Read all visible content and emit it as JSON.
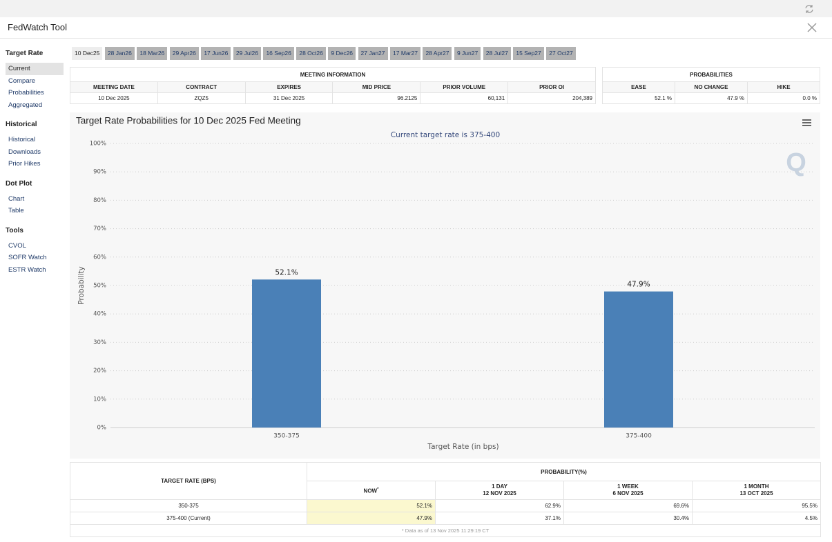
{
  "header": {
    "title": "FedWatch Tool"
  },
  "sidebar": [
    {
      "heading": "Target Rate",
      "items": [
        "Current",
        "Compare",
        "Probabilities",
        "Aggregated"
      ]
    },
    {
      "heading": "Historical",
      "items": [
        "Historical",
        "Downloads",
        "Prior Hikes"
      ]
    },
    {
      "heading": "Dot Plot",
      "items": [
        "Chart",
        "Table"
      ]
    },
    {
      "heading": "Tools",
      "items": [
        "CVOL",
        "SOFR Watch",
        "ESTR Watch"
      ]
    }
  ],
  "meeting_tabs": [
    "10 Dec25",
    "28 Jan26",
    "18 Mar26",
    "29 Apr26",
    "17 Jun26",
    "29 Jul26",
    "16 Sep26",
    "28 Oct26",
    "9 Dec26",
    "27 Jan27",
    "17 Mar27",
    "28 Apr27",
    "9 Jun27",
    "28 Jul27",
    "15 Sep27",
    "27 Oct27"
  ],
  "meeting_info": {
    "title": "MEETING INFORMATION",
    "columns": [
      "MEETING DATE",
      "CONTRACT",
      "EXPIRES",
      "MID PRICE",
      "PRIOR VOLUME",
      "PRIOR OI"
    ],
    "row": [
      "10 Dec 2025",
      "ZQZ5",
      "31 Dec 2025",
      "96.2125",
      "60,131",
      "204,389"
    ]
  },
  "probabilities": {
    "title": "PROBABILITIES",
    "columns": [
      "EASE",
      "NO CHANGE",
      "HIKE"
    ],
    "row": [
      "52.1 %",
      "47.9 %",
      "0.0 %"
    ]
  },
  "chart_data": {
    "type": "bar",
    "title": "Target Rate Probabilities for 10 Dec 2025 Fed Meeting",
    "subtitle": "Current target rate is 375-400",
    "x_label": "Target Rate (in bps)",
    "y_label": "Probability",
    "categories": [
      "350-375",
      "375-400"
    ],
    "values": [
      52.1,
      47.9
    ],
    "value_labels": [
      "52.1%",
      "47.9%"
    ],
    "color": "#4a80b7",
    "ylim": [
      0,
      100
    ],
    "yticks": [
      {
        "value": 0,
        "label": "0%"
      },
      {
        "value": 10,
        "label": "10%"
      },
      {
        "value": 20,
        "label": "20%"
      },
      {
        "value": 30,
        "label": "30%"
      },
      {
        "value": 40,
        "label": "40%"
      },
      {
        "value": 50,
        "label": "50%"
      },
      {
        "value": 60,
        "label": "60%"
      },
      {
        "value": 70,
        "label": "70%"
      },
      {
        "value": 80,
        "label": "80%"
      },
      {
        "value": 90,
        "label": "90%"
      },
      {
        "value": 100,
        "label": "100%"
      }
    ],
    "grid": true
  },
  "probability_table": {
    "row_header": "TARGET RATE (BPS)",
    "group_header": "PROBABILITY(%)",
    "columns": [
      {
        "label": "NOW",
        "note": "*"
      },
      {
        "label": "1 DAY",
        "date": "12 NOV 2025"
      },
      {
        "label": "1 WEEK",
        "date": "6 NOV 2025"
      },
      {
        "label": "1 MONTH",
        "date": "13 OCT 2025"
      }
    ],
    "rows": [
      [
        "350-375",
        "52.1%",
        "62.9%",
        "69.6%",
        "95.5%"
      ],
      [
        "375-400 (Current)",
        "47.9%",
        "37.1%",
        "30.4%",
        "4.5%"
      ]
    ],
    "footnote": "* Data as of 13 Nov 2025 11:29:19 CT"
  }
}
